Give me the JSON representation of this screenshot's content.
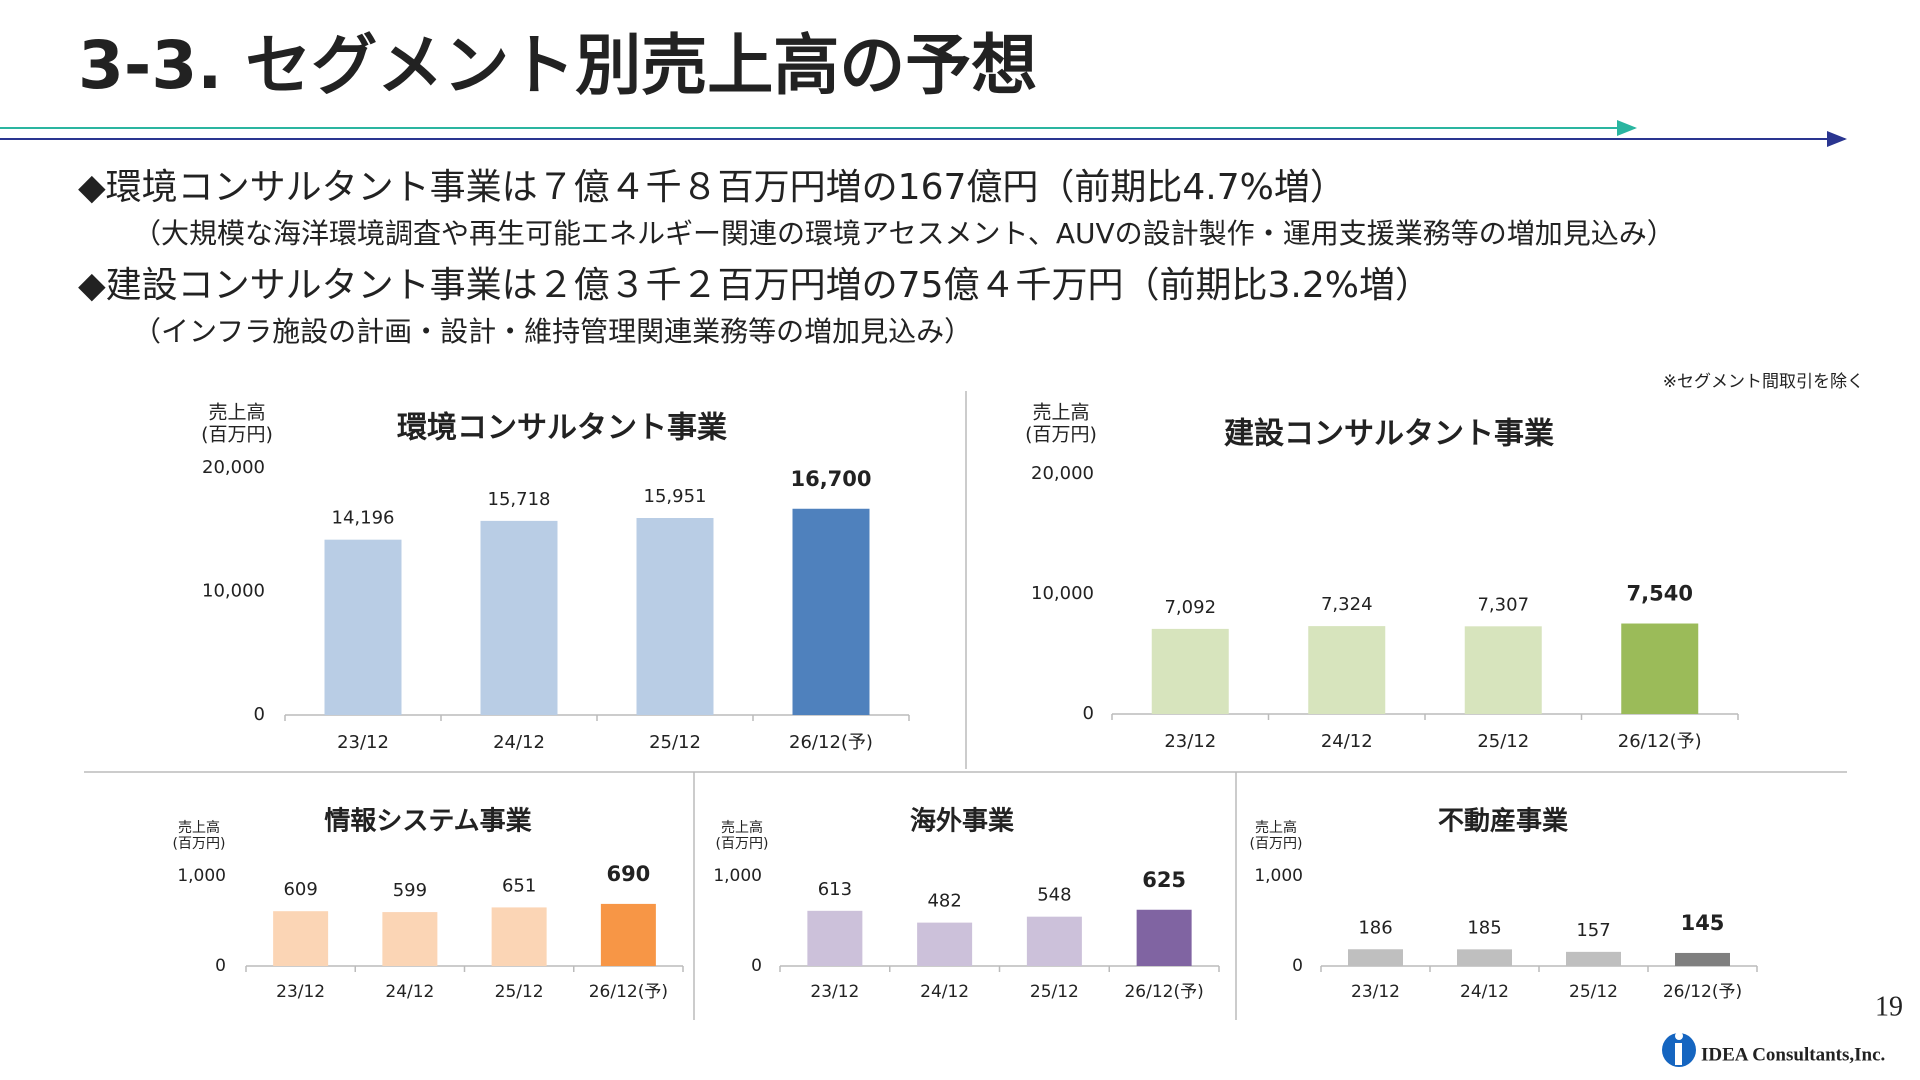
{
  "header": {
    "title": "3-3. セグメント別売上高の予想"
  },
  "bullets": [
    {
      "text": "◆環境コンサルタント事業は７億４千８百万円増の167億円（前期比4.7%増）",
      "detail": "（大規模な海洋環境調査や再生可能エネルギー関連の環境アセスメント、AUVの設計製作・運用支援業務等の増加見込み）"
    },
    {
      "text": "◆建設コンサルタント事業は２億３千２百万円増の75億４千万円（前期比3.2%増）",
      "detail": "（インフラ施設の計画・設計・維持管理関連業務等の増加見込み）"
    }
  ],
  "note": "※セグメント間取引を除く",
  "chart_data": [
    {
      "type": "bar",
      "title": "環境コンサルタント事業",
      "ylabel": [
        "売上高",
        "(百万円)"
      ],
      "categories": [
        "23/12",
        "24/12",
        "25/12",
        "26/12(予)"
      ],
      "values": [
        14196,
        15718,
        15951,
        16700
      ],
      "value_labels": [
        "14,196",
        "15,718",
        "15,951",
        "16,700"
      ],
      "colors": [
        "#b9cde5",
        "#b9cde5",
        "#b9cde5",
        "#4f81bd"
      ],
      "ylim": [
        0,
        20000
      ],
      "yticks": [
        0,
        {
          "value": 10000,
          "label": "10,000"
        },
        {
          "value": 20000,
          "label": "20,000"
        }
      ]
    },
    {
      "type": "bar",
      "title": "建設コンサルタント事業",
      "ylabel": [
        "売上高",
        "(百万円)"
      ],
      "categories": [
        "23/12",
        "24/12",
        "25/12",
        "26/12(予)"
      ],
      "values": [
        7092,
        7324,
        7307,
        7540
      ],
      "value_labels": [
        "7,092",
        "7,324",
        "7,307",
        "7,540"
      ],
      "colors": [
        "#d7e4bd",
        "#d7e4bd",
        "#d7e4bd",
        "#9bbb59"
      ],
      "ylim": [
        0,
        20000
      ],
      "yticks": [
        0,
        {
          "value": 10000,
          "label": "10,000"
        },
        {
          "value": 20000,
          "label": "20,000"
        }
      ]
    },
    {
      "type": "bar",
      "title": "情報システム事業",
      "ylabel": [
        "売上高",
        "(百万円)"
      ],
      "categories": [
        "23/12",
        "24/12",
        "25/12",
        "26/12(予)"
      ],
      "values": [
        609,
        599,
        651,
        690
      ],
      "colors": [
        "#fbd5b5",
        "#fbd5b5",
        "#fbd5b5",
        "#f79646"
      ],
      "ylim": [
        0,
        1000
      ],
      "yticks": [
        0,
        {
          "value": 1000,
          "label": "1,000"
        }
      ]
    },
    {
      "type": "bar",
      "title": "海外事業",
      "ylabel": [
        "売上高",
        "(百万円)"
      ],
      "categories": [
        "23/12",
        "24/12",
        "25/12",
        "26/12(予)"
      ],
      "values": [
        613,
        482,
        548,
        625
      ],
      "colors": [
        "#ccc1da",
        "#ccc1da",
        "#ccc1da",
        "#8064a2"
      ],
      "ylim": [
        0,
        1000
      ],
      "yticks": [
        0,
        {
          "value": 1000,
          "label": "1,000"
        }
      ]
    },
    {
      "type": "bar",
      "title": "不動産事業",
      "ylabel": [
        "売上高",
        "(百万円)"
      ],
      "categories": [
        "23/12",
        "24/12",
        "25/12",
        "26/12(予)"
      ],
      "values": [
        186,
        185,
        157,
        145
      ],
      "colors": [
        "#bfbfbf",
        "#bfbfbf",
        "#bfbfbf",
        "#7f7f7f"
      ],
      "ylim": [
        0,
        1000
      ],
      "yticks": [
        0,
        {
          "value": 1000,
          "label": "1,000"
        }
      ]
    }
  ],
  "page_number": "19",
  "logo": "IDEA Consultants,Inc."
}
